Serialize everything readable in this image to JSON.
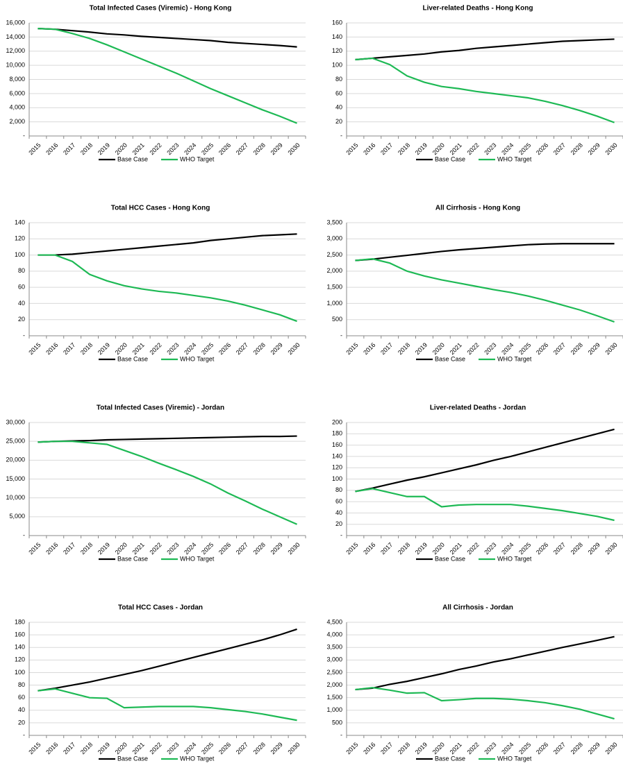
{
  "chart_data": [
    {
      "type": "line",
      "title": "Total Infected Cases (Viremic) - Hong Kong",
      "categories": [
        "2015",
        "2016",
        "2017",
        "2018",
        "2019",
        "2020",
        "2021",
        "2022",
        "2023",
        "2024",
        "2025",
        "2026",
        "2027",
        "2028",
        "2029",
        "2030"
      ],
      "series": [
        {
          "name": "Base Case",
          "color": "#000000",
          "values": [
            15200,
            15100,
            14900,
            14700,
            14450,
            14300,
            14100,
            13950,
            13800,
            13650,
            13500,
            13250,
            13100,
            12950,
            12800,
            12600
          ]
        },
        {
          "name": "WHO Target",
          "color": "#1db954",
          "values": [
            15200,
            15100,
            14500,
            13800,
            12900,
            11900,
            10900,
            9900,
            8900,
            7800,
            6700,
            5700,
            4700,
            3700,
            2800,
            1800
          ]
        }
      ],
      "ylim": [
        0,
        16000
      ],
      "yticks": [
        {
          "value": 0,
          "label": "-"
        },
        {
          "value": 2000,
          "label": "2,000"
        },
        {
          "value": 4000,
          "label": "4,000"
        },
        {
          "value": 6000,
          "label": "6,000"
        },
        {
          "value": 8000,
          "label": "8,000"
        },
        {
          "value": 10000,
          "label": "10,000"
        },
        {
          "value": 12000,
          "label": "12,000"
        },
        {
          "value": 14000,
          "label": "14,000"
        },
        {
          "value": 16000,
          "label": "16,000"
        }
      ],
      "grid": true,
      "legend": "bottom"
    },
    {
      "type": "line",
      "title": "Liver-related Deaths - Hong Kong",
      "categories": [
        "2015",
        "2016",
        "2017",
        "2018",
        "2019",
        "2020",
        "2021",
        "2022",
        "2023",
        "2024",
        "2025",
        "2026",
        "2027",
        "2028",
        "2029",
        "2030"
      ],
      "series": [
        {
          "name": "Base Case",
          "color": "#000000",
          "values": [
            108,
            110,
            112,
            114,
            116,
            119,
            121,
            124,
            126,
            128,
            130,
            132,
            134,
            135,
            136,
            137
          ]
        },
        {
          "name": "WHO Target",
          "color": "#1db954",
          "values": [
            108,
            110,
            101,
            85,
            76,
            70,
            67,
            63,
            60,
            57,
            54,
            49,
            43,
            36,
            28,
            19
          ]
        }
      ],
      "ylim": [
        0,
        160
      ],
      "yticks": [
        {
          "value": 0,
          "label": "-"
        },
        20,
        40,
        60,
        80,
        100,
        120,
        140,
        160
      ],
      "grid": true,
      "legend": "bottom"
    },
    {
      "type": "line",
      "title": "Total HCC Cases - Hong Kong",
      "categories": [
        "2015",
        "2016",
        "2017",
        "2018",
        "2019",
        "2020",
        "2021",
        "2022",
        "2023",
        "2024",
        "2025",
        "2026",
        "2027",
        "2028",
        "2029",
        "2030"
      ],
      "series": [
        {
          "name": "Base Case",
          "color": "#000000",
          "values": [
            100,
            100,
            101,
            103,
            105,
            107,
            109,
            111,
            113,
            115,
            118,
            120,
            122,
            124,
            125,
            126
          ]
        },
        {
          "name": "WHO Target",
          "color": "#1db954",
          "values": [
            100,
            100,
            92,
            76,
            68,
            62,
            58,
            55,
            53,
            50,
            47,
            43,
            38,
            32,
            26,
            18
          ]
        }
      ],
      "ylim": [
        0,
        140
      ],
      "yticks": [
        {
          "value": 0,
          "label": "-"
        },
        20,
        40,
        60,
        80,
        100,
        120,
        140
      ],
      "grid": true,
      "legend": "bottom"
    },
    {
      "type": "line",
      "title": "All Cirrhosis - Hong Kong",
      "categories": [
        "2015",
        "2016",
        "2017",
        "2018",
        "2019",
        "2020",
        "2021",
        "2022",
        "2023",
        "2024",
        "2025",
        "2026",
        "2027",
        "2028",
        "2029",
        "2030"
      ],
      "series": [
        {
          "name": "Base Case",
          "color": "#000000",
          "values": [
            2330,
            2370,
            2430,
            2490,
            2550,
            2610,
            2660,
            2700,
            2740,
            2780,
            2820,
            2840,
            2850,
            2850,
            2850,
            2850
          ]
        },
        {
          "name": "WHO Target",
          "color": "#1db954",
          "values": [
            2330,
            2380,
            2250,
            2000,
            1850,
            1730,
            1630,
            1530,
            1430,
            1340,
            1230,
            1100,
            950,
            800,
            620,
            430
          ]
        }
      ],
      "ylim": [
        0,
        3500
      ],
      "yticks": [
        {
          "value": 0,
          "label": "-"
        },
        500,
        {
          "value": 1000,
          "label": "1,000"
        },
        {
          "value": 1500,
          "label": "1,500"
        },
        {
          "value": 2000,
          "label": "2,000"
        },
        {
          "value": 2500,
          "label": "2,500"
        },
        {
          "value": 3000,
          "label": "3,000"
        },
        {
          "value": 3500,
          "label": "3,500"
        }
      ],
      "grid": true,
      "legend": "bottom"
    },
    {
      "type": "line",
      "title": "Total Infected Cases (Viremic) - Jordan",
      "categories": [
        "2015",
        "2016",
        "2017",
        "2018",
        "2019",
        "2020",
        "2021",
        "2022",
        "2023",
        "2024",
        "2025",
        "2026",
        "2027",
        "2028",
        "2029",
        "2030"
      ],
      "series": [
        {
          "name": "Base Case",
          "color": "#000000",
          "values": [
            24800,
            25000,
            25100,
            25200,
            25400,
            25500,
            25600,
            25700,
            25800,
            25900,
            26000,
            26100,
            26200,
            26300,
            26300,
            26400
          ]
        },
        {
          "name": "WHO Target",
          "color": "#1db954",
          "values": [
            24800,
            25000,
            25000,
            24600,
            24200,
            22600,
            21000,
            19200,
            17500,
            15700,
            13700,
            11300,
            9200,
            7000,
            5000,
            3000
          ]
        }
      ],
      "ylim": [
        0,
        30000
      ],
      "yticks": [
        {
          "value": 0,
          "label": "-"
        },
        {
          "value": 5000,
          "label": "5,000"
        },
        {
          "value": 10000,
          "label": "10,000"
        },
        {
          "value": 15000,
          "label": "15,000"
        },
        {
          "value": 20000,
          "label": "20,000"
        },
        {
          "value": 25000,
          "label": "25,000"
        },
        {
          "value": 30000,
          "label": "30,000"
        }
      ],
      "grid": true,
      "legend": "bottom"
    },
    {
      "type": "line",
      "title": "Liver-related Deaths - Jordan",
      "categories": [
        "2015",
        "2016",
        "2017",
        "2018",
        "2019",
        "2020",
        "2021",
        "2022",
        "2023",
        "2024",
        "2025",
        "2026",
        "2027",
        "2028",
        "2029",
        "2030"
      ],
      "series": [
        {
          "name": "Base Case",
          "color": "#000000",
          "values": [
            78,
            84,
            91,
            98,
            104,
            111,
            118,
            125,
            133,
            140,
            148,
            156,
            164,
            172,
            180,
            188
          ]
        },
        {
          "name": "WHO Target",
          "color": "#1db954",
          "values": [
            78,
            83,
            76,
            69,
            69,
            51,
            54,
            55,
            55,
            55,
            52,
            48,
            44,
            39,
            34,
            27
          ]
        }
      ],
      "ylim": [
        0,
        200
      ],
      "yticks": [
        {
          "value": 0,
          "label": "-"
        },
        20,
        40,
        60,
        80,
        100,
        120,
        140,
        160,
        180,
        200
      ],
      "grid": true,
      "legend": "bottom"
    },
    {
      "type": "line",
      "title": "Total HCC Cases - Jordan",
      "categories": [
        "2015",
        "2016",
        "2017",
        "2018",
        "2019",
        "2020",
        "2021",
        "2022",
        "2023",
        "2024",
        "2025",
        "2026",
        "2027",
        "2028",
        "2029",
        "2030"
      ],
      "series": [
        {
          "name": "Base Case",
          "color": "#000000",
          "values": [
            71,
            75,
            80,
            85,
            91,
            97,
            103,
            110,
            117,
            124,
            131,
            138,
            145,
            152,
            160,
            169
          ]
        },
        {
          "name": "WHO Target",
          "color": "#1db954",
          "values": [
            71,
            74,
            67,
            60,
            59,
            44,
            45,
            46,
            46,
            46,
            44,
            41,
            38,
            34,
            29,
            24
          ]
        }
      ],
      "ylim": [
        0,
        180
      ],
      "yticks": [
        {
          "value": 0,
          "label": "-"
        },
        20,
        40,
        60,
        80,
        100,
        120,
        140,
        160,
        180
      ],
      "grid": true,
      "legend": "bottom"
    },
    {
      "type": "line",
      "title": "All Cirrhosis - Jordan",
      "categories": [
        "2015",
        "2016",
        "2017",
        "2018",
        "2019",
        "2020",
        "2021",
        "2022",
        "2023",
        "2024",
        "2025",
        "2026",
        "2027",
        "2028",
        "2029",
        "2030"
      ],
      "series": [
        {
          "name": "Base Case",
          "color": "#000000",
          "values": [
            1820,
            1880,
            2030,
            2150,
            2300,
            2450,
            2620,
            2760,
            2920,
            3050,
            3200,
            3350,
            3500,
            3640,
            3780,
            3930
          ]
        },
        {
          "name": "WHO Target",
          "color": "#1db954",
          "values": [
            1820,
            1900,
            1800,
            1680,
            1700,
            1380,
            1420,
            1470,
            1470,
            1440,
            1380,
            1300,
            1180,
            1040,
            850,
            660
          ]
        }
      ],
      "ylim": [
        0,
        4500
      ],
      "yticks": [
        {
          "value": 0,
          "label": "-"
        },
        500,
        {
          "value": 1000,
          "label": "1,000"
        },
        {
          "value": 1500,
          "label": "1,500"
        },
        {
          "value": 2000,
          "label": "2,000"
        },
        {
          "value": 2500,
          "label": "2,500"
        },
        {
          "value": 3000,
          "label": "3,000"
        },
        {
          "value": 3500,
          "label": "3,500"
        },
        {
          "value": 4000,
          "label": "4,000"
        },
        {
          "value": 4500,
          "label": "4,500"
        }
      ],
      "grid": true,
      "legend": "bottom"
    }
  ]
}
